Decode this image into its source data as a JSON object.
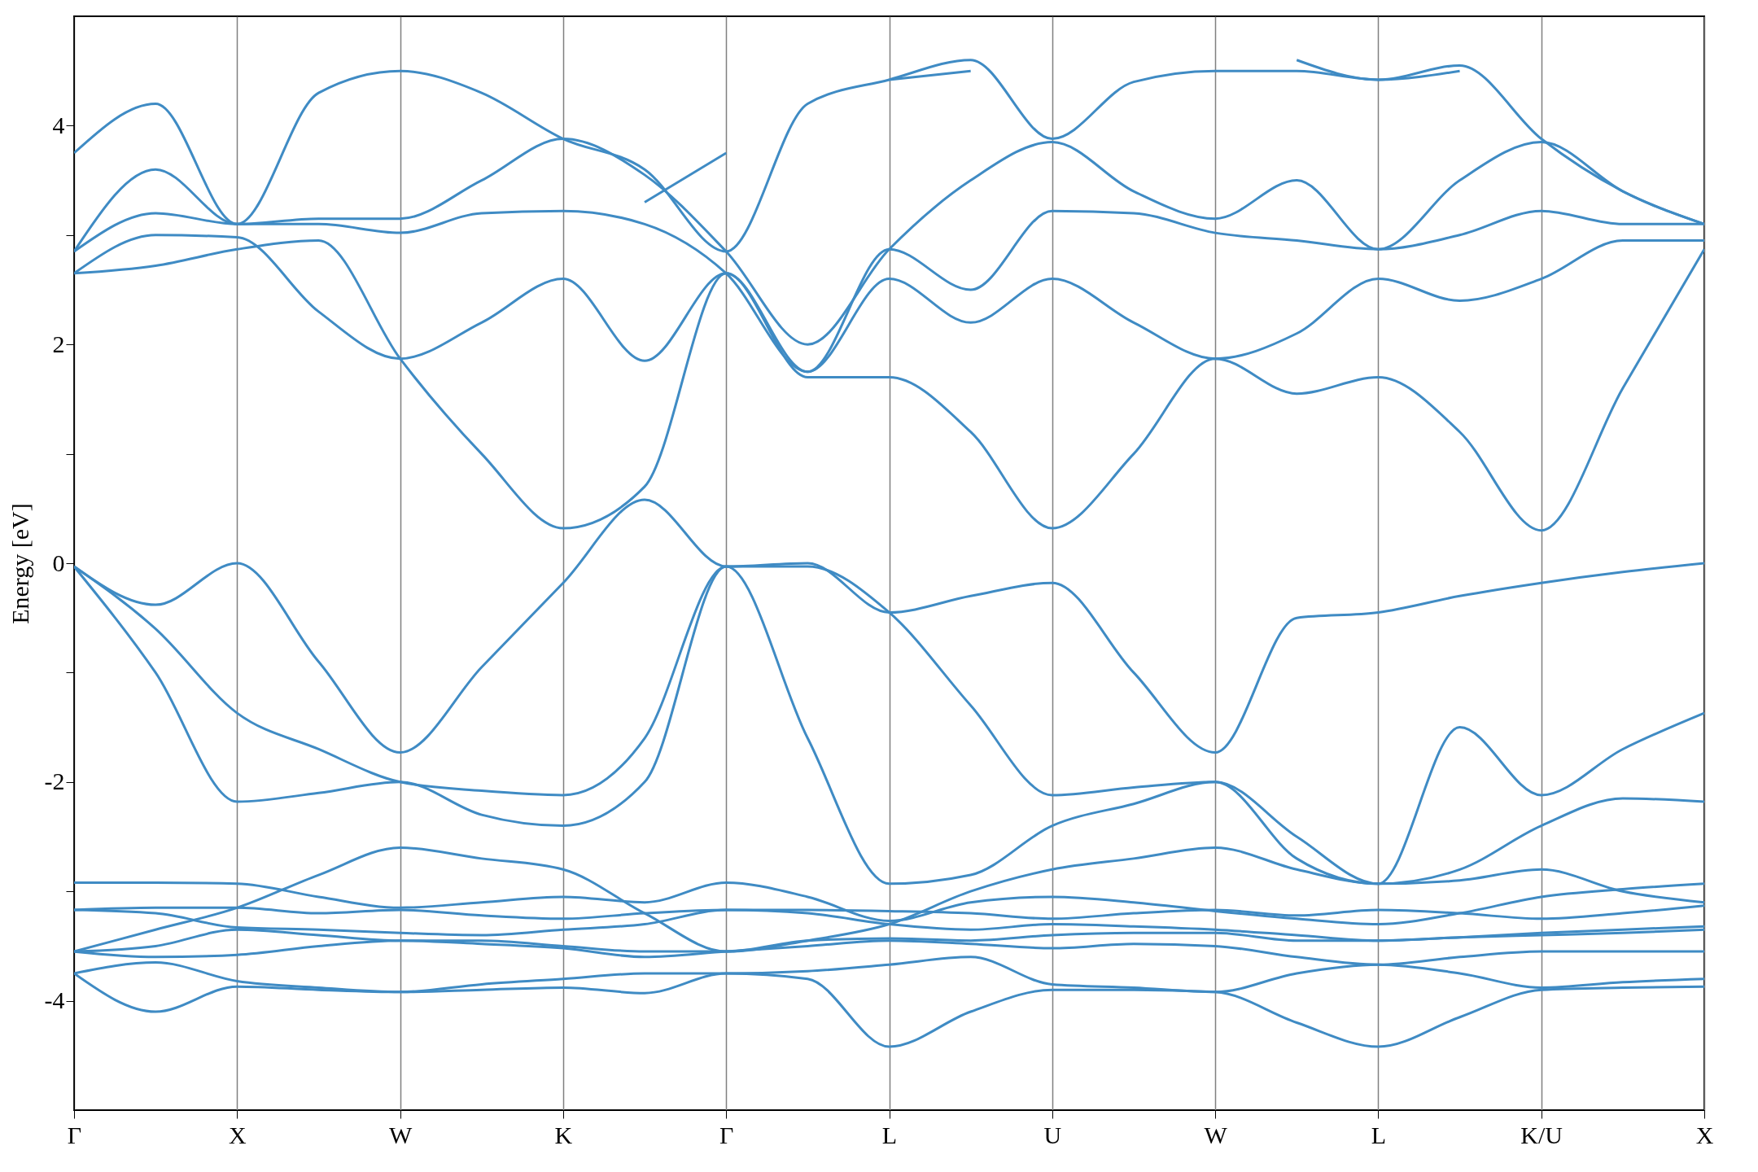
{
  "chart_data": {
    "type": "line",
    "ylabel": "Energy [eV]",
    "categories": [
      "Γ",
      null,
      "X",
      null,
      "W",
      null,
      "K",
      null,
      "Γ",
      null,
      "L",
      null,
      "U",
      null,
      "W",
      null,
      "L",
      null,
      "K/U",
      null,
      "X"
    ],
    "ylim": [
      -5,
      5
    ],
    "yticks": [
      -4,
      {
        "value": -3,
        "label": null
      },
      -2,
      {
        "value": -1,
        "label": null
      },
      0,
      {
        "value": 1,
        "label": null
      },
      2,
      {
        "value": 3,
        "label": null
      },
      4
    ],
    "grid": "x",
    "legend": false,
    "marker": "none",
    "line_style": "solid",
    "series": [
      {
        "color": "#3f8bc4",
        "values": [
          -3.75,
          -4.1,
          -3.87,
          -3.9,
          -3.92,
          -3.9,
          -3.88,
          -3.93,
          -3.75,
          -3.8,
          -4.42,
          -4.1,
          -3.9,
          -3.9,
          -3.92,
          -4.2,
          -4.42,
          -4.15,
          -3.9,
          -3.88,
          -3.87
        ]
      },
      {
        "color": "#3f8bc4",
        "values": [
          -3.75,
          -3.65,
          -3.82,
          -3.88,
          -3.92,
          -3.85,
          -3.8,
          -3.75,
          -3.75,
          -3.73,
          -3.67,
          -3.6,
          -3.85,
          -3.88,
          -3.92,
          -3.75,
          -3.67,
          -3.75,
          -3.88,
          -3.83,
          -3.8
        ]
      },
      {
        "color": "#3f8bc4",
        "values": [
          -3.55,
          -3.6,
          -3.58,
          -3.5,
          -3.45,
          -3.48,
          -3.52,
          -3.6,
          -3.55,
          -3.5,
          -3.45,
          -3.48,
          -3.52,
          -3.48,
          -3.5,
          -3.6,
          -3.67,
          -3.6,
          -3.55,
          -3.55,
          -3.55
        ]
      },
      {
        "color": "#3f8bc4",
        "values": [
          -3.55,
          -3.5,
          -3.35,
          -3.4,
          -3.45,
          -3.45,
          -3.5,
          -3.55,
          -3.55,
          -3.45,
          -3.43,
          -3.45,
          -3.4,
          -3.38,
          -3.38,
          -3.45,
          -3.45,
          -3.42,
          -3.4,
          -3.38,
          -3.35
        ]
      },
      {
        "color": "#3f8bc4",
        "values": [
          -3.17,
          -3.2,
          -3.33,
          -3.35,
          -3.38,
          -3.4,
          -3.35,
          -3.3,
          -3.17,
          -3.2,
          -3.3,
          -3.35,
          -3.3,
          -3.32,
          -3.35,
          -3.4,
          -3.45,
          -3.42,
          -3.38,
          -3.35,
          -3.32
        ]
      },
      {
        "color": "#3f8bc4",
        "values": [
          -3.17,
          -3.15,
          -3.15,
          -3.2,
          -3.17,
          -3.22,
          -3.25,
          -3.2,
          -3.17,
          -3.17,
          -3.18,
          -3.2,
          -3.25,
          -3.2,
          -3.17,
          -3.22,
          -3.17,
          -3.2,
          -3.25,
          -3.2,
          -3.13
        ]
      },
      {
        "color": "#3f8bc4",
        "values": [
          -2.92,
          -2.92,
          -2.93,
          -3.05,
          -3.15,
          -3.1,
          -3.05,
          -3.1,
          -2.92,
          -3.05,
          -3.27,
          -3.1,
          -3.05,
          -3.1,
          -3.18,
          -3.25,
          -3.3,
          -3.2,
          -3.05,
          -2.98,
          -2.93
        ]
      },
      {
        "color": "#3f8bc4",
        "values": [
          -3.55,
          -3.35,
          -3.15,
          -2.85,
          -2.6,
          -2.7,
          -2.8,
          -3.2,
          -3.55,
          -3.45,
          -3.3,
          -3.0,
          -2.8,
          -2.7,
          -2.6,
          -2.8,
          -2.93,
          -2.9,
          -2.8,
          -3.0,
          -3.1
        ]
      },
      {
        "color": "#3f8bc4",
        "values": [
          -0.03,
          -1.0,
          -2.18,
          -2.1,
          -2.0,
          -2.3,
          -2.4,
          -2.0,
          -0.03,
          -1.6,
          -2.93,
          -2.85,
          -2.4,
          -2.2,
          -2.0,
          -2.7,
          -2.93,
          -2.8,
          -2.4,
          -2.15,
          -2.18
        ]
      },
      {
        "color": "#3f8bc4",
        "values": [
          -0.03,
          -0.6,
          -1.37,
          -1.7,
          -2.0,
          -2.08,
          -2.12,
          -1.6,
          -0.03,
          -0.03,
          -0.45,
          -1.3,
          -2.12,
          -2.05,
          -2.0,
          -2.5,
          -2.93,
          -1.5,
          -2.12,
          -1.7,
          -1.37
        ]
      },
      {
        "color": "#3f8bc4",
        "values": [
          -0.03,
          -0.38,
          0.0,
          -0.9,
          -1.73,
          -0.95,
          -0.18,
          0.58,
          -0.03,
          0.0,
          -0.45,
          -0.3,
          -0.18,
          -1.0,
          -1.73,
          -0.5,
          -0.45,
          -0.3,
          -0.18,
          -0.08,
          0.0
        ]
      },
      {
        "color": "#3f8bc4",
        "values": [
          2.65,
          2.72,
          2.87,
          2.95,
          1.87,
          1.0,
          0.32,
          0.7,
          2.65,
          1.7,
          1.7,
          1.2,
          0.32,
          1.0,
          1.87,
          1.55,
          1.7,
          1.2,
          0.3,
          1.6,
          2.87
        ]
      },
      {
        "color": "#3f8bc4",
        "values": [
          2.65,
          3.0,
          2.98,
          2.3,
          1.87,
          2.2,
          2.6,
          1.85,
          2.65,
          1.75,
          2.6,
          2.2,
          2.6,
          2.2,
          1.87,
          2.1,
          2.6,
          2.4,
          2.6,
          2.95,
          2.95
        ]
      },
      {
        "color": "#3f8bc4",
        "values": [
          2.85,
          3.2,
          3.1,
          3.1,
          3.02,
          3.2,
          3.22,
          3.1,
          2.65,
          1.75,
          2.87,
          2.5,
          3.22,
          3.2,
          3.02,
          2.95,
          2.87,
          3.0,
          3.22,
          3.1,
          3.1
        ]
      },
      {
        "color": "#3f8bc4",
        "values": [
          2.85,
          3.6,
          3.1,
          3.15,
          3.15,
          3.5,
          3.88,
          3.55,
          2.85,
          2.0,
          2.87,
          3.5,
          3.85,
          3.4,
          3.15,
          3.5,
          2.87,
          3.5,
          3.85,
          3.4,
          3.1
        ]
      },
      {
        "color": "#3f8bc4",
        "values": [
          3.75,
          4.2,
          3.1,
          4.3,
          4.5,
          4.3,
          3.88,
          3.6,
          2.85,
          4.2,
          4.42,
          4.6,
          3.88,
          4.4,
          4.5,
          4.5,
          4.42,
          4.55,
          3.88,
          3.4,
          3.1
        ]
      },
      {
        "color": "#3f8bc4",
        "values": [
          null,
          null,
          null,
          null,
          null,
          null,
          null,
          3.3,
          3.75,
          null,
          4.42,
          4.5,
          null,
          null,
          null,
          4.6,
          4.42,
          4.5,
          null,
          null,
          null
        ]
      }
    ]
  }
}
